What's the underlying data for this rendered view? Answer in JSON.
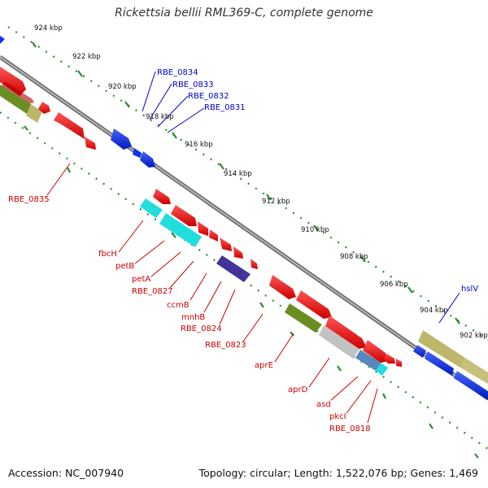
{
  "title": "Rickettsia bellii RML369-C, complete genome",
  "footer": {
    "accession": "Accession: NC_007940",
    "summary": "Topology: circular; Length: 1,522,076 bp; Genes: 1,469"
  },
  "colors": {
    "red_gene": "#ee1111",
    "blue_gene": "#1133ee",
    "olive_gene": "#6b8e23",
    "khaki_gene": "#bdb76b",
    "cyan_gene": "#22dddd",
    "purple_gene": "#443399",
    "grey_gene": "#bbbbbb",
    "steel_gene": "#5588bb",
    "backbone": "#888888",
    "tick": "#2e8b2e",
    "label_red": "#cc0000",
    "label_blue": "#0000cc"
  },
  "kbp_labels": [
    "924 kbp",
    "922 kbp",
    "920 kbp",
    "918 kbp",
    "916 kbp",
    "914 kbp",
    "912 kbp",
    "910 kbp",
    "908 kbp",
    "906 kbp",
    "904 kbp",
    "902 kbp"
  ],
  "blue_labels": [
    "RBE_0834",
    "RBE_0833",
    "RBE_0832",
    "RBE_0831",
    "hslV"
  ],
  "red_labels": [
    "RBE_0835",
    "fbcH",
    "petB",
    "petA",
    "RBE_0827",
    "ccmB",
    "mnhB",
    "RBE_0824",
    "RBE_0823",
    "aprE",
    "aprD",
    "asd",
    "pkcI",
    "RBE_0818"
  ]
}
